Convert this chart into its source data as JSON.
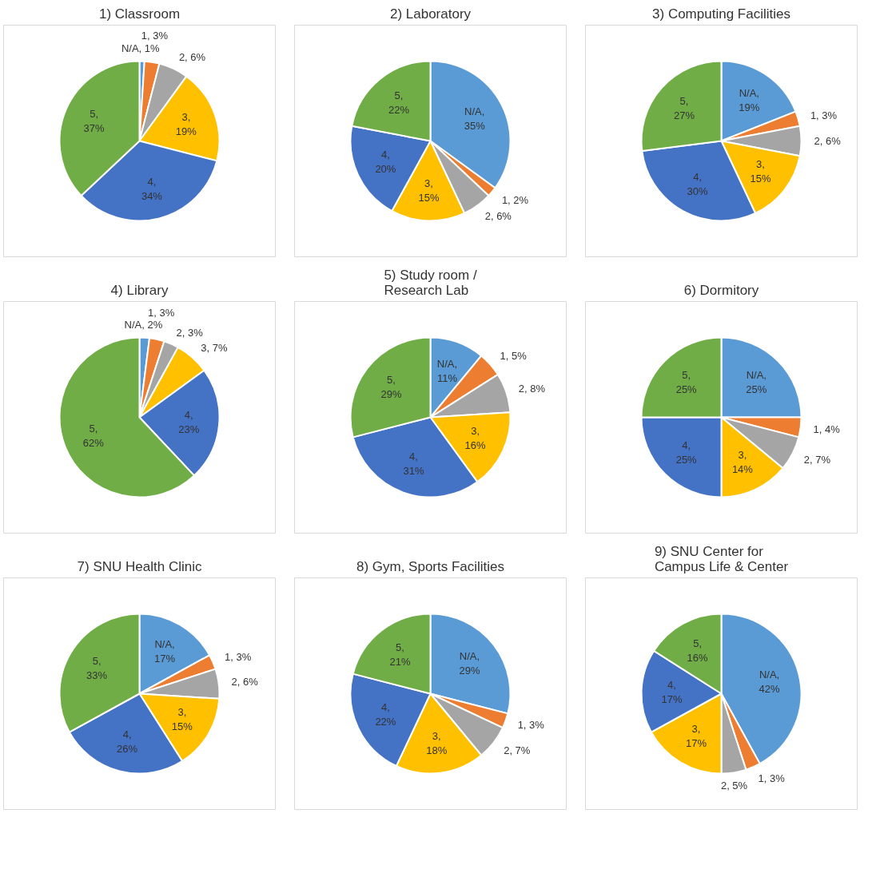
{
  "chart_data": [
    {
      "type": "pie",
      "title": "1) Classroom",
      "categories": [
        null,
        null,
        null,
        null,
        null,
        null
      ],
      "values": [
        1,
        3,
        6,
        19,
        34,
        37
      ],
      "colors": [
        "#5b9bd5",
        "#ed7d31",
        "#a5a5a5",
        "#ffc000",
        "#4472c4",
        "#70ad47"
      ],
      "value_labels": [
        "N/A, 1%",
        "1, 3%",
        "2, 6%",
        "3, 19%",
        "4, 34%",
        "5, 37%"
      ]
    },
    {
      "type": "pie",
      "title": "2) Laboratory",
      "categories": [
        null,
        null,
        null,
        null,
        null,
        null
      ],
      "values": [
        35,
        2,
        6,
        15,
        20,
        22
      ],
      "colors": [
        "#5b9bd5",
        "#ed7d31",
        "#a5a5a5",
        "#ffc000",
        "#4472c4",
        "#70ad47"
      ],
      "value_labels": [
        "N/A, 35%",
        "1, 2%",
        "2, 6%",
        "3, 15%",
        "4, 20%",
        "5, 22%"
      ]
    },
    {
      "type": "pie",
      "title": "3) Computing Facilities",
      "categories": [
        null,
        null,
        null,
        null,
        null,
        null
      ],
      "values": [
        19,
        3,
        6,
        15,
        30,
        27
      ],
      "colors": [
        "#5b9bd5",
        "#ed7d31",
        "#a5a5a5",
        "#ffc000",
        "#4472c4",
        "#70ad47"
      ],
      "value_labels": [
        "N/A, 19%",
        "1, 3%",
        "2, 6%",
        "3, 15%",
        "4, 30%",
        "5, 27%"
      ]
    },
    {
      "type": "pie",
      "title": "4) Library",
      "categories": [
        null,
        null,
        null,
        null,
        null,
        null
      ],
      "values": [
        2,
        3,
        3,
        7,
        23,
        62
      ],
      "colors": [
        "#5b9bd5",
        "#ed7d31",
        "#a5a5a5",
        "#ffc000",
        "#4472c4",
        "#70ad47"
      ],
      "value_labels": [
        "N/A, 2%",
        "1, 3%",
        "2, 3%",
        "3, 7%",
        "4, 23%",
        "5, 62%"
      ]
    },
    {
      "type": "pie",
      "title": "5) Study room /\nResearch Lab",
      "categories": [
        null,
        null,
        null,
        null,
        null,
        null
      ],
      "values": [
        11,
        5,
        8,
        16,
        31,
        29
      ],
      "colors": [
        "#5b9bd5",
        "#ed7d31",
        "#a5a5a5",
        "#ffc000",
        "#4472c4",
        "#70ad47"
      ],
      "value_labels": [
        "N/A, 11%",
        "1, 5%",
        "2, 8%",
        "3, 16%",
        "4, 31%",
        "5, 29%"
      ]
    },
    {
      "type": "pie",
      "title": "6) Dormitory",
      "categories": [
        null,
        null,
        null,
        null,
        null,
        null
      ],
      "values": [
        25,
        4,
        7,
        14,
        25,
        25
      ],
      "colors": [
        "#5b9bd5",
        "#ed7d31",
        "#a5a5a5",
        "#ffc000",
        "#4472c4",
        "#70ad47"
      ],
      "value_labels": [
        "N/A, 25%",
        "1, 4%",
        "2, 7%",
        "3, 14%",
        "4, 25%",
        "5, 25%"
      ]
    },
    {
      "type": "pie",
      "title": "7) SNU Health Clinic",
      "categories": [
        null,
        null,
        null,
        null,
        null,
        null
      ],
      "values": [
        17,
        3,
        6,
        15,
        26,
        33
      ],
      "colors": [
        "#5b9bd5",
        "#ed7d31",
        "#a5a5a5",
        "#ffc000",
        "#4472c4",
        "#70ad47"
      ],
      "value_labels": [
        "N/A, 17%",
        "1, 3%",
        "2, 6%",
        "3, 15%",
        "4, 26%",
        "5, 33%"
      ]
    },
    {
      "type": "pie",
      "title": "8) Gym, Sports Facilities",
      "categories": [
        null,
        null,
        null,
        null,
        null,
        null
      ],
      "values": [
        29,
        3,
        7,
        18,
        22,
        21
      ],
      "colors": [
        "#5b9bd5",
        "#ed7d31",
        "#a5a5a5",
        "#ffc000",
        "#4472c4",
        "#70ad47"
      ],
      "value_labels": [
        "N/A, 29%",
        "1, 3%",
        "2, 7%",
        "3, 18%",
        "4, 22%",
        "5, 21%"
      ]
    },
    {
      "type": "pie",
      "title": "9) SNU Center for\nCampus Life & Center",
      "categories": [
        null,
        null,
        null,
        null,
        null,
        null
      ],
      "values": [
        42,
        3,
        5,
        17,
        17,
        16
      ],
      "colors": [
        "#5b9bd5",
        "#ed7d31",
        "#a5a5a5",
        "#ffc000",
        "#4472c4",
        "#70ad47"
      ],
      "value_labels": [
        "N/A, 42%",
        "1, 3%",
        "2, 5%",
        "3, 17%",
        "4, 17%",
        "5, 16%"
      ]
    }
  ]
}
